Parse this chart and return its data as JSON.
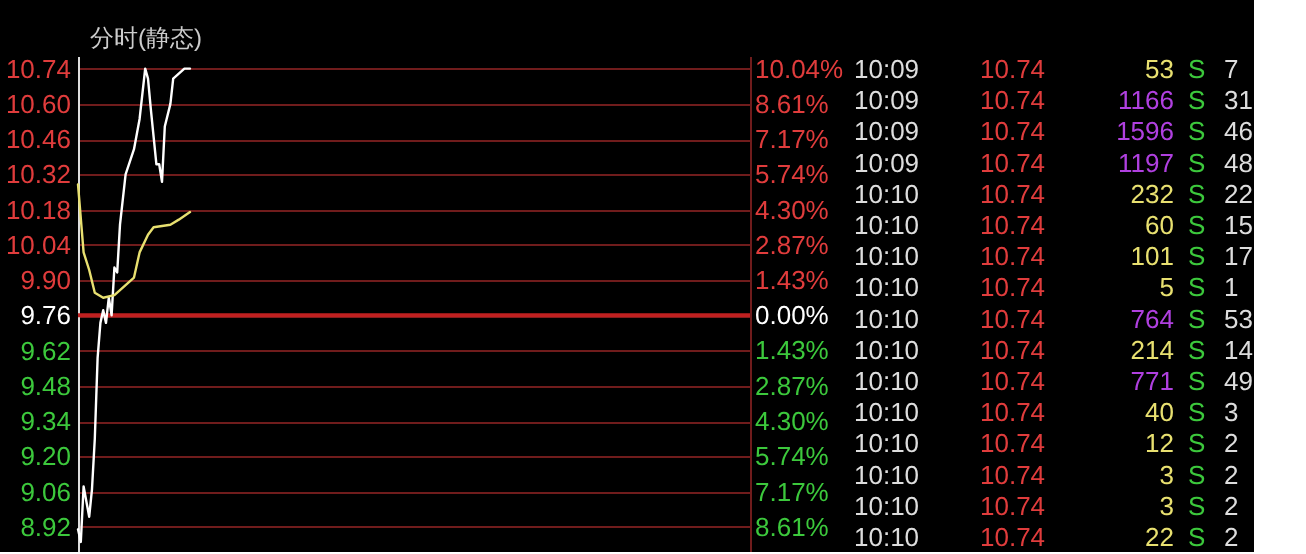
{
  "chart_data": [
    {
      "type": "line",
      "title": "分时(静态)",
      "categories": [
        null,
        null,
        null,
        null,
        null,
        null,
        null,
        null,
        null,
        null,
        null,
        null,
        null,
        null,
        null,
        null,
        null,
        null,
        null,
        null,
        null,
        null,
        null,
        null,
        null,
        null,
        null,
        null,
        null,
        null,
        null,
        null,
        null,
        null,
        null,
        null,
        null,
        null,
        null,
        null,
        null,
        null,
        null,
        null,
        null,
        null,
        null,
        null,
        null,
        null,
        null,
        null,
        null,
        null,
        null,
        null,
        null,
        null,
        null,
        null,
        null,
        null,
        null,
        null,
        null,
        null,
        null,
        null,
        null,
        null,
        null,
        null,
        null,
        null,
        null,
        null,
        null,
        null,
        null,
        null,
        null,
        null,
        null,
        null,
        null,
        null,
        null,
        null,
        null,
        null,
        null,
        null,
        null,
        null,
        null,
        null,
        null,
        null,
        null,
        null,
        null,
        null,
        null,
        null,
        null,
        null,
        null,
        null,
        null,
        null,
        null,
        null,
        null,
        null,
        null,
        null,
        null,
        null,
        null,
        null,
        null,
        null,
        null,
        null,
        null,
        null,
        null,
        null,
        null,
        null,
        null,
        null,
        null,
        null,
        null,
        null,
        null,
        null,
        null,
        null,
        null,
        null,
        null,
        null,
        null,
        null,
        null,
        null,
        null,
        null,
        null,
        null,
        null,
        null,
        null,
        null,
        null,
        null,
        null,
        null,
        null,
        null,
        null,
        null,
        null,
        null,
        null,
        null,
        null,
        null,
        null,
        null,
        null,
        null,
        null,
        null,
        null,
        null,
        null,
        null,
        null,
        null,
        null,
        null,
        null,
        null,
        null,
        null,
        null,
        null,
        null,
        null,
        null,
        null,
        null,
        null,
        null,
        null,
        null,
        null,
        null,
        null,
        null,
        null,
        null,
        null,
        null,
        null,
        null,
        null,
        null,
        null,
        null,
        null,
        null,
        null,
        null,
        null,
        null,
        null,
        null,
        null,
        null,
        null,
        null,
        null,
        null,
        null,
        null,
        null,
        null,
        null,
        null,
        null,
        null,
        null,
        null,
        null,
        null,
        null,
        null
      ],
      "series": [
        {
          "color": "#ffffff",
          "values": [
            8.91,
            8.86,
            9.08,
            null,
            8.96,
            9.07,
            9.27,
            9.59,
            9.73,
            9.78,
            9.73,
            9.83,
            9.76,
            9.95,
            9.93,
            10.12,
            null,
            10.32,
            null,
            null,
            10.42,
            null,
            10.54,
            null,
            10.74,
            10.7,
            10.58,
            null,
            10.36,
            10.36,
            10.29,
            10.51,
            null,
            10.6,
            10.7,
            null,
            10.72,
            null,
            10.74,
            null,
            10.74,
            null,
            null,
            null,
            null,
            null,
            null,
            null,
            null,
            null,
            null,
            null,
            null,
            null,
            null,
            null,
            null,
            null,
            null,
            null,
            null,
            null,
            null,
            null,
            null,
            null,
            null,
            null,
            null,
            null,
            null,
            null,
            null,
            null,
            null,
            null,
            null,
            null,
            null,
            null,
            null,
            null,
            null,
            null,
            null,
            null,
            null,
            null,
            null,
            null,
            null,
            null,
            null,
            null,
            null,
            null,
            null,
            null,
            null,
            null,
            null,
            null,
            null,
            null,
            null,
            null,
            null,
            null,
            null,
            null,
            null,
            null,
            null,
            null,
            null,
            null,
            null,
            null,
            null,
            null,
            null,
            null,
            null,
            null,
            null,
            null,
            null,
            null,
            null,
            null,
            null,
            null,
            null,
            null,
            null,
            null,
            null,
            null,
            null,
            null,
            null,
            null,
            null,
            null,
            null,
            null,
            null,
            null,
            null,
            null,
            null,
            null,
            null,
            null,
            null,
            null,
            null,
            null,
            null,
            null,
            null,
            null,
            null,
            null,
            null,
            null,
            null,
            null,
            null,
            null,
            null,
            null,
            null,
            null,
            null,
            null,
            null,
            null,
            null,
            null,
            null,
            null,
            null,
            null,
            null,
            null,
            null,
            null,
            null,
            null,
            null,
            null,
            null,
            null,
            null,
            null,
            null,
            null,
            null,
            null,
            null,
            null,
            null,
            null,
            null,
            null,
            null,
            null,
            null,
            null,
            null,
            null,
            null,
            null,
            null,
            null,
            null,
            null,
            null,
            null,
            null,
            null,
            null,
            null,
            null,
            null,
            null,
            null,
            null,
            null,
            null,
            null,
            null,
            null,
            null,
            null,
            null,
            null,
            null,
            null,
            null
          ]
        },
        {
          "color": "#e8e070",
          "values": [
            10.28,
            null,
            10.01,
            null,
            9.94,
            null,
            9.85,
            null,
            null,
            9.83,
            null,
            null,
            null,
            9.84,
            null,
            null,
            null,
            9.88,
            null,
            null,
            9.91,
            null,
            10.01,
            null,
            null,
            10.08,
            null,
            10.11,
            null,
            null,
            null,
            null,
            null,
            10.12,
            null,
            null,
            10.14,
            null,
            null,
            null,
            10.17,
            null,
            null,
            null,
            null,
            null,
            null,
            null,
            null,
            null,
            null,
            null,
            null,
            null,
            null,
            null,
            null,
            null,
            null,
            null,
            null,
            null,
            null,
            null,
            null,
            null,
            null,
            null,
            null,
            null,
            null,
            null,
            null,
            null,
            null,
            null,
            null,
            null,
            null,
            null,
            null,
            null,
            null,
            null,
            null,
            null,
            null,
            null,
            null,
            null,
            null,
            null,
            null,
            null,
            null,
            null,
            null,
            null,
            null,
            null,
            null,
            null,
            null,
            null,
            null,
            null,
            null,
            null,
            null,
            null,
            null,
            null,
            null,
            null,
            null,
            null,
            null,
            null,
            null,
            null,
            null,
            null,
            null,
            null,
            null,
            null,
            null,
            null,
            null,
            null,
            null,
            null,
            null,
            null,
            null,
            null,
            null,
            null,
            null,
            null,
            null,
            null,
            null,
            null,
            null,
            null,
            null,
            null,
            null,
            null,
            null,
            null,
            null,
            null,
            null,
            null,
            null,
            null,
            null,
            null,
            null,
            null,
            null,
            null,
            null,
            null,
            null,
            null,
            null,
            null,
            null,
            null,
            null,
            null,
            null,
            null,
            null,
            null,
            null,
            null,
            null,
            null,
            null,
            null,
            null,
            null,
            null,
            null,
            null,
            null,
            null,
            null,
            null,
            null,
            null,
            null,
            null,
            null,
            null,
            null,
            null,
            null,
            null,
            null,
            null,
            null,
            null,
            null,
            null,
            null,
            null,
            null,
            null,
            null,
            null,
            null,
            null,
            null,
            null,
            null,
            null,
            null,
            null,
            null,
            null,
            null,
            null,
            null,
            null,
            null,
            null,
            null,
            null,
            null,
            null,
            null,
            null,
            null,
            null,
            null,
            null
          ]
        }
      ],
      "ylim": [
        8.82,
        10.79
      ],
      "yticks": [
        10.74,
        {
          "value": 10.6,
          "label": "10.60"
        },
        10.46,
        10.32,
        10.18,
        10.04,
        {
          "value": 9.9,
          "label": "9.90"
        },
        9.76,
        9.62,
        9.48,
        9.34,
        {
          "value": 9.2,
          "label": "9.20"
        },
        9.06,
        8.92
      ],
      "y2lim": [
        -9.63,
        10.55
      ],
      "y2ticks": [
        {
          "value": 10.04,
          "label": "10.04%"
        },
        {
          "value": 8.61,
          "label": "8.61%"
        },
        {
          "value": 7.17,
          "label": "7.17%"
        },
        {
          "value": 5.74,
          "label": "5.74%"
        },
        {
          "value": 4.3,
          "label": "4.30%"
        },
        {
          "value": 2.87,
          "label": "2.87%"
        },
        {
          "value": 1.43,
          "label": "1.43%"
        },
        {
          "value": 0,
          "label": "0.00%"
        },
        {
          "value": -1.43,
          "label": "1.43%"
        },
        {
          "value": -2.87,
          "label": "2.87%"
        },
        {
          "value": -4.3,
          "label": "4.30%"
        },
        {
          "value": -5.74,
          "label": "5.74%"
        },
        {
          "value": -7.17,
          "label": "7.17%"
        },
        {
          "value": -8.61,
          "label": "8.61%"
        }
      ],
      "ref_lines": [
        {
          "axis": "y",
          "value": 9.76,
          "color": "#c02020"
        }
      ],
      "grid": "y",
      "line_style": "solid"
    },
    {
      "type": "other",
      "annotations": [
        "10:09 10.74 53 S 7",
        "10:09 10.74 1166 S 31",
        "10:09 10.74 1596 S 46",
        "10:09 10.74 1197 S 48",
        "10:10 10.74 232 S 22",
        "10:10 10.74 60 S 15",
        "10:10 10.74 101 S 17",
        "10:10 10.74 5 S 1",
        "10:10 10.74 764 S 53",
        "10:10 10.74 214 S 14",
        "10:10 10.74 771 S 49",
        "10:10 10.74 40 S 3",
        "10:10 10.74 12 S 2",
        "10:10 10.74 3 S 2",
        "10:10 10.74 3 S 2",
        "10:10 10.74 22 S 2"
      ]
    }
  ]
}
